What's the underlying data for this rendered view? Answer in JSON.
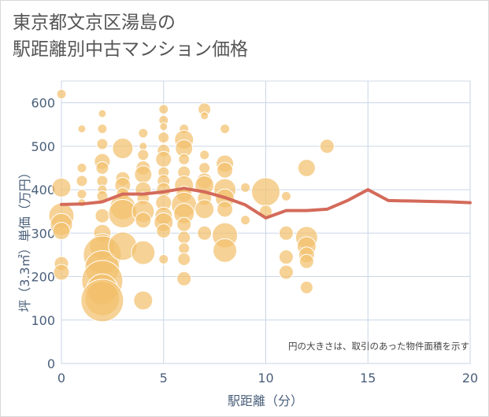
{
  "title_line1": "東京都文京区湯島の",
  "title_line2": "駅距離別中古マンション価格",
  "chart_data": {
    "type": "scatter",
    "title": "東京都文京区湯島の駅距離別中古マンション価格",
    "xlabel": "駅距離（分）",
    "ylabel": "坪（3.3㎡）単価（万円）",
    "xlim": [
      0,
      20
    ],
    "ylim": [
      0,
      650
    ],
    "xticks": [
      0,
      5,
      10,
      15,
      20
    ],
    "yticks": [
      0,
      100,
      200,
      300,
      400,
      500,
      600
    ],
    "grid": true,
    "annotation": "円の大きさは、取引のあった物件面積を示す",
    "colors": {
      "bubble": "#f2c06e",
      "line": "#d46a5a"
    },
    "line_series": {
      "x": [
        0,
        1,
        2,
        3,
        4,
        5,
        6,
        7,
        8,
        9,
        10,
        11,
        12,
        13,
        14,
        15,
        16,
        17,
        18,
        19,
        20
      ],
      "y": [
        366,
        367,
        372,
        390,
        390,
        395,
        403,
        395,
        382,
        365,
        335,
        352,
        352,
        355,
        375,
        400,
        375,
        374,
        373,
        372,
        370
      ]
    },
    "bubbles": [
      {
        "x": 0,
        "y": 620,
        "s": 6
      },
      {
        "x": 0,
        "y": 405,
        "s": 12
      },
      {
        "x": 0,
        "y": 340,
        "s": 16
      },
      {
        "x": 0,
        "y": 320,
        "s": 14
      },
      {
        "x": 0,
        "y": 305,
        "s": 11
      },
      {
        "x": 0,
        "y": 230,
        "s": 9
      },
      {
        "x": 0,
        "y": 210,
        "s": 10
      },
      {
        "x": 1,
        "y": 540,
        "s": 5
      },
      {
        "x": 1,
        "y": 450,
        "s": 6
      },
      {
        "x": 1,
        "y": 420,
        "s": 7
      },
      {
        "x": 1,
        "y": 390,
        "s": 6
      },
      {
        "x": 1,
        "y": 370,
        "s": 5
      },
      {
        "x": 2,
        "y": 575,
        "s": 5
      },
      {
        "x": 2,
        "y": 540,
        "s": 6
      },
      {
        "x": 2,
        "y": 505,
        "s": 7
      },
      {
        "x": 2,
        "y": 465,
        "s": 10
      },
      {
        "x": 2,
        "y": 450,
        "s": 8
      },
      {
        "x": 2,
        "y": 420,
        "s": 7
      },
      {
        "x": 2,
        "y": 400,
        "s": 6
      },
      {
        "x": 2,
        "y": 385,
        "s": 7
      },
      {
        "x": 2,
        "y": 340,
        "s": 9
      },
      {
        "x": 2,
        "y": 300,
        "s": 11
      },
      {
        "x": 2,
        "y": 270,
        "s": 16
      },
      {
        "x": 2,
        "y": 250,
        "s": 24
      },
      {
        "x": 2,
        "y": 220,
        "s": 22
      },
      {
        "x": 2,
        "y": 190,
        "s": 26
      },
      {
        "x": 2,
        "y": 170,
        "s": 20
      },
      {
        "x": 2,
        "y": 150,
        "s": 22
      },
      {
        "x": 2,
        "y": 145,
        "s": 27
      },
      {
        "x": 3,
        "y": 495,
        "s": 13
      },
      {
        "x": 3,
        "y": 425,
        "s": 9
      },
      {
        "x": 3,
        "y": 410,
        "s": 10
      },
      {
        "x": 3,
        "y": 390,
        "s": 8
      },
      {
        "x": 3,
        "y": 360,
        "s": 16
      },
      {
        "x": 3,
        "y": 345,
        "s": 18
      },
      {
        "x": 3,
        "y": 270,
        "s": 18
      },
      {
        "x": 4,
        "y": 530,
        "s": 6
      },
      {
        "x": 4,
        "y": 500,
        "s": 5
      },
      {
        "x": 4,
        "y": 480,
        "s": 7
      },
      {
        "x": 4,
        "y": 450,
        "s": 9
      },
      {
        "x": 4,
        "y": 435,
        "s": 11
      },
      {
        "x": 4,
        "y": 400,
        "s": 10
      },
      {
        "x": 4,
        "y": 380,
        "s": 8
      },
      {
        "x": 4,
        "y": 350,
        "s": 14
      },
      {
        "x": 4,
        "y": 330,
        "s": 10
      },
      {
        "x": 4,
        "y": 255,
        "s": 15
      },
      {
        "x": 4,
        "y": 145,
        "s": 12
      },
      {
        "x": 5,
        "y": 585,
        "s": 6
      },
      {
        "x": 5,
        "y": 560,
        "s": 6
      },
      {
        "x": 5,
        "y": 545,
        "s": 5
      },
      {
        "x": 5,
        "y": 520,
        "s": 7
      },
      {
        "x": 5,
        "y": 490,
        "s": 8
      },
      {
        "x": 5,
        "y": 470,
        "s": 10
      },
      {
        "x": 5,
        "y": 440,
        "s": 7
      },
      {
        "x": 5,
        "y": 420,
        "s": 8
      },
      {
        "x": 5,
        "y": 400,
        "s": 9
      },
      {
        "x": 5,
        "y": 370,
        "s": 10
      },
      {
        "x": 5,
        "y": 340,
        "s": 11
      },
      {
        "x": 5,
        "y": 325,
        "s": 12
      },
      {
        "x": 5,
        "y": 305,
        "s": 9
      },
      {
        "x": 5,
        "y": 240,
        "s": 6
      },
      {
        "x": 6,
        "y": 540,
        "s": 6
      },
      {
        "x": 6,
        "y": 515,
        "s": 12
      },
      {
        "x": 6,
        "y": 495,
        "s": 11
      },
      {
        "x": 6,
        "y": 470,
        "s": 7
      },
      {
        "x": 6,
        "y": 440,
        "s": 8
      },
      {
        "x": 6,
        "y": 410,
        "s": 12
      },
      {
        "x": 6,
        "y": 390,
        "s": 10
      },
      {
        "x": 6,
        "y": 365,
        "s": 16
      },
      {
        "x": 6,
        "y": 345,
        "s": 13
      },
      {
        "x": 6,
        "y": 320,
        "s": 9
      },
      {
        "x": 6,
        "y": 290,
        "s": 8
      },
      {
        "x": 6,
        "y": 265,
        "s": 7
      },
      {
        "x": 6,
        "y": 240,
        "s": 8
      },
      {
        "x": 6,
        "y": 195,
        "s": 9
      },
      {
        "x": 7,
        "y": 585,
        "s": 8
      },
      {
        "x": 7,
        "y": 570,
        "s": 5
      },
      {
        "x": 7,
        "y": 480,
        "s": 6
      },
      {
        "x": 7,
        "y": 450,
        "s": 7
      },
      {
        "x": 7,
        "y": 420,
        "s": 10
      },
      {
        "x": 7,
        "y": 410,
        "s": 12
      },
      {
        "x": 7,
        "y": 380,
        "s": 9
      },
      {
        "x": 7,
        "y": 355,
        "s": 12
      },
      {
        "x": 7,
        "y": 300,
        "s": 9
      },
      {
        "x": 8,
        "y": 540,
        "s": 6
      },
      {
        "x": 8,
        "y": 460,
        "s": 11
      },
      {
        "x": 8,
        "y": 445,
        "s": 10
      },
      {
        "x": 8,
        "y": 400,
        "s": 14
      },
      {
        "x": 8,
        "y": 380,
        "s": 12
      },
      {
        "x": 8,
        "y": 355,
        "s": 10
      },
      {
        "x": 8,
        "y": 295,
        "s": 16
      },
      {
        "x": 8,
        "y": 260,
        "s": 15
      },
      {
        "x": 9,
        "y": 405,
        "s": 6
      },
      {
        "x": 9,
        "y": 330,
        "s": 6
      },
      {
        "x": 10,
        "y": 395,
        "s": 18
      },
      {
        "x": 10,
        "y": 350,
        "s": 8
      },
      {
        "x": 11,
        "y": 385,
        "s": 6
      },
      {
        "x": 11,
        "y": 300,
        "s": 9
      },
      {
        "x": 11,
        "y": 245,
        "s": 9
      },
      {
        "x": 11,
        "y": 210,
        "s": 9
      },
      {
        "x": 12,
        "y": 450,
        "s": 11
      },
      {
        "x": 12,
        "y": 290,
        "s": 14
      },
      {
        "x": 12,
        "y": 270,
        "s": 12
      },
      {
        "x": 12,
        "y": 250,
        "s": 10
      },
      {
        "x": 12,
        "y": 235,
        "s": 9
      },
      {
        "x": 12,
        "y": 175,
        "s": 8
      },
      {
        "x": 13,
        "y": 500,
        "s": 9
      }
    ]
  }
}
